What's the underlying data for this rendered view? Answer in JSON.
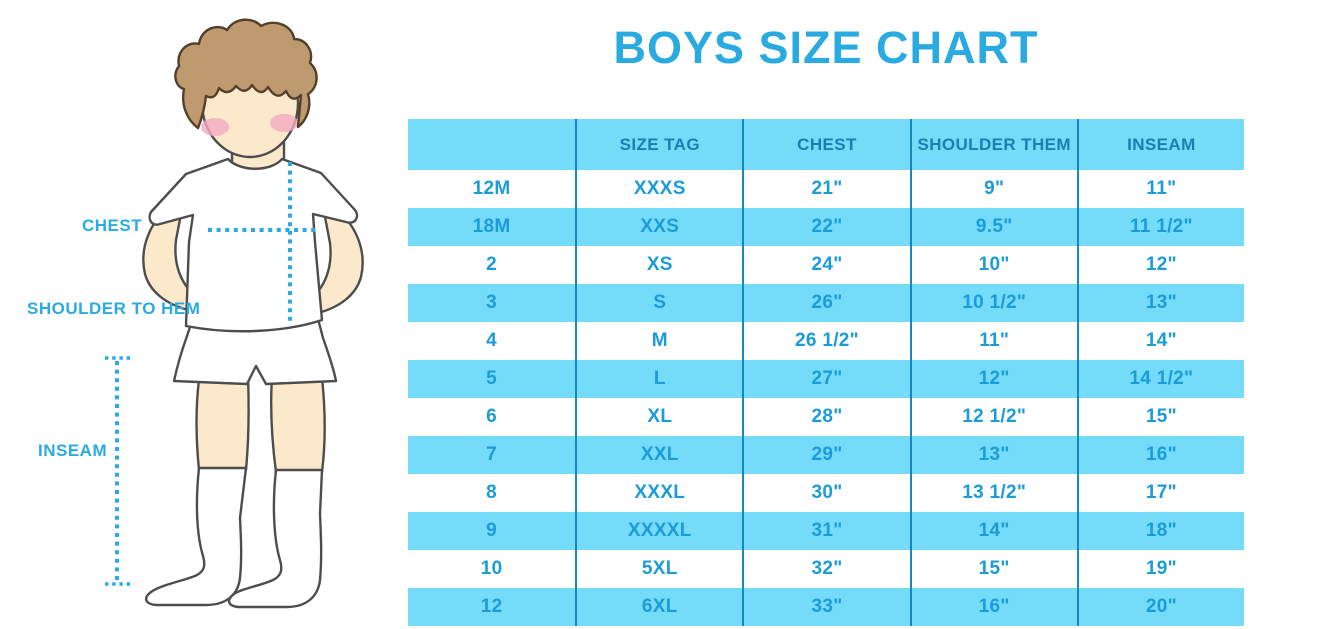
{
  "title": "BOYS SIZE CHART",
  "figure": {
    "name": "boy-measurement-illustration",
    "labels": {
      "chest": "CHEST",
      "shoulder_to_hem": "SHOULDER TO HEM",
      "inseam": "INSEAM"
    }
  },
  "colors": {
    "accent_cyan": "#29ABE2",
    "stripe_blue": "#74DCF9",
    "divider_blue": "#1787C0",
    "header_text": "#1A7FB0",
    "cell_text": "#1B9CD8",
    "outline": "#4D4D4D",
    "skin": "#FCE9CB",
    "hair": "#BE9A6E",
    "hair_outline": "#52402C",
    "blush": "#F2A9C0"
  },
  "chart_data": {
    "type": "table",
    "title": "BOYS SIZE CHART",
    "columns": [
      "",
      "SIZE TAG",
      "CHEST",
      "SHOULDER THEM",
      "INSEAM"
    ],
    "rows": [
      [
        "12M",
        "XXXS",
        "21\"",
        "9\"",
        "11\""
      ],
      [
        "18M",
        "XXS",
        "22\"",
        "9.5\"",
        "11 1/2\""
      ],
      [
        "2",
        "XS",
        "24\"",
        "10\"",
        "12\""
      ],
      [
        "3",
        "S",
        "26\"",
        "10 1/2\"",
        "13\""
      ],
      [
        "4",
        "M",
        "26 1/2\"",
        "11\"",
        "14\""
      ],
      [
        "5",
        "L",
        "27\"",
        "12\"",
        "14 1/2\""
      ],
      [
        "6",
        "XL",
        "28\"",
        "12 1/2\"",
        "15\""
      ],
      [
        "7",
        "XXL",
        "29\"",
        "13\"",
        "16\""
      ],
      [
        "8",
        "XXXL",
        "30\"",
        "13 1/2\"",
        "17\""
      ],
      [
        "9",
        "XXXXL",
        "31\"",
        "14\"",
        "18\""
      ],
      [
        "10",
        "5XL",
        "32\"",
        "15\"",
        "19\""
      ],
      [
        "12",
        "6XL",
        "33\"",
        "16\"",
        "20\""
      ]
    ],
    "layout": {
      "stripes": "alternating white and light blue, header light blue",
      "column_dividers": true,
      "outer_border": false
    }
  }
}
